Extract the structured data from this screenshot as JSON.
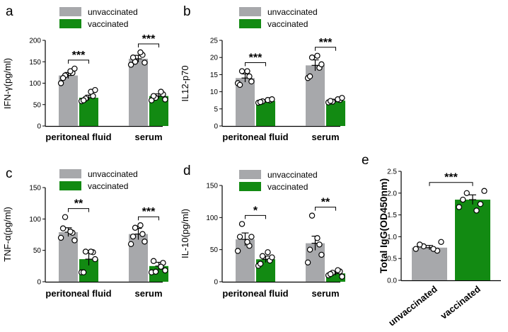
{
  "colors": {
    "unvaccinated": "#a7a8ab",
    "vaccinated": "#128a12",
    "axis": "#000000"
  },
  "legend": {
    "unvaccinated": "unvaccinated",
    "vaccinated": "vaccinated"
  },
  "chart_data": [
    {
      "id": "a",
      "letter": "a",
      "type": "bar",
      "ylabel": "IFN-γ(pg/ml)",
      "ylim": [
        0,
        200
      ],
      "yticks": [
        0,
        50,
        100,
        150,
        200
      ],
      "categories": [
        "peritoneal fluid",
        "serum"
      ],
      "series": [
        {
          "name": "unvaccinated",
          "values": [
            118,
            157
          ],
          "errors": [
            7,
            8
          ],
          "points": [
            [
              100,
              118,
              124,
              112,
              128,
              134
            ],
            [
              143,
              150,
              166,
              160,
              172,
              148
            ]
          ]
        },
        {
          "name": "vaccinated",
          "values": [
            66,
            70
          ],
          "errors": [
            6,
            5
          ],
          "points": [
            [
              58,
              64,
              70,
              60,
              80,
              84
            ],
            [
              60,
              66,
              74,
              70,
              80,
              62
            ]
          ]
        }
      ],
      "significance": [
        "***",
        "***"
      ]
    },
    {
      "id": "b",
      "letter": "b",
      "type": "bar",
      "ylabel": "IL12-p70",
      "ylim": [
        0,
        25
      ],
      "yticks": [
        0,
        5,
        10,
        15,
        20,
        25
      ],
      "categories": [
        "peritoneal fluid",
        "serum"
      ],
      "series": [
        {
          "name": "unvaccinated",
          "values": [
            14,
            17.7
          ],
          "errors": [
            1.2,
            1.6
          ],
          "points": [
            [
              12.5,
              16,
              14.5,
              12,
              16,
              13
            ],
            [
              14,
              20,
              17,
              14.5,
              20.5,
              18
            ]
          ]
        },
        {
          "name": "vaccinated",
          "values": [
            7.3,
            7.4
          ],
          "errors": [
            0.4,
            0.4
          ],
          "points": [
            [
              6.8,
              7.2,
              7.5,
              7.0,
              7.6,
              7.8
            ],
            [
              6.9,
              7.1,
              7.6,
              7.3,
              7.8,
              8.2
            ]
          ]
        }
      ],
      "significance": [
        "***",
        "***"
      ]
    },
    {
      "id": "c",
      "letter": "c",
      "type": "bar",
      "ylabel": "TNF-α(pg/ml)",
      "ylim": [
        0,
        150
      ],
      "yticks": [
        0,
        50,
        100,
        150
      ],
      "categories": [
        "peritoneal fluid",
        "serum"
      ],
      "series": [
        {
          "name": "unvaccinated",
          "values": [
            79,
            76
          ],
          "errors": [
            7,
            9
          ],
          "points": [
            [
              70,
              103,
              78,
              85,
              80,
              66
            ],
            [
              60,
              86,
              76,
              72,
              90,
              64
            ]
          ]
        },
        {
          "name": "vaccinated",
          "values": [
            36,
            25
          ],
          "errors": [
            10,
            6
          ],
          "points": [
            [
              15,
              48,
              47,
              15,
              48,
              36
            ],
            [
              15,
              16,
              30,
              33,
              24,
              18
            ]
          ]
        }
      ],
      "significance": [
        "**",
        "***"
      ]
    },
    {
      "id": "d",
      "letter": "d",
      "type": "bar",
      "ylabel": "IL-10(pg/ml)",
      "ylim": [
        0,
        150
      ],
      "yticks": [
        0,
        50,
        100,
        150
      ],
      "categories": [
        "peritoneal fluid",
        "serum"
      ],
      "series": [
        {
          "name": "unvaccinated",
          "values": [
            66,
            60
          ],
          "errors": [
            10,
            11
          ],
          "points": [
            [
              48,
              90,
              56,
              70,
              62,
              70
            ],
            [
              30,
              103,
              58,
              50,
              68,
              42
            ]
          ]
        },
        {
          "name": "vaccinated",
          "values": [
            35,
            13
          ],
          "errors": [
            5,
            3
          ],
          "points": [
            [
              25,
              40,
              33,
              28,
              46,
              38
            ],
            [
              10,
              14,
              16,
              12,
              18,
              8
            ]
          ]
        }
      ],
      "significance": [
        "*",
        "**"
      ]
    },
    {
      "id": "e",
      "letter": "e",
      "type": "bar",
      "ylabel": "Total IgG(OD450nm)",
      "ylim": [
        0,
        2.5
      ],
      "yticks": [
        "0.0",
        "0.5",
        "1.0",
        "1.5",
        "2.0",
        "2.5"
      ],
      "categories": [
        "unvaccinated",
        "vaccinated"
      ],
      "values": [
        0.75,
        1.85
      ],
      "errors": [
        0.05,
        0.11
      ],
      "points": [
        [
          0.72,
          0.78,
          0.68,
          0.82,
          0.72,
          0.88
        ],
        [
          1.68,
          2.0,
          1.75,
          1.85,
          1.6,
          2.05
        ]
      ],
      "significance": [
        "***"
      ]
    }
  ]
}
